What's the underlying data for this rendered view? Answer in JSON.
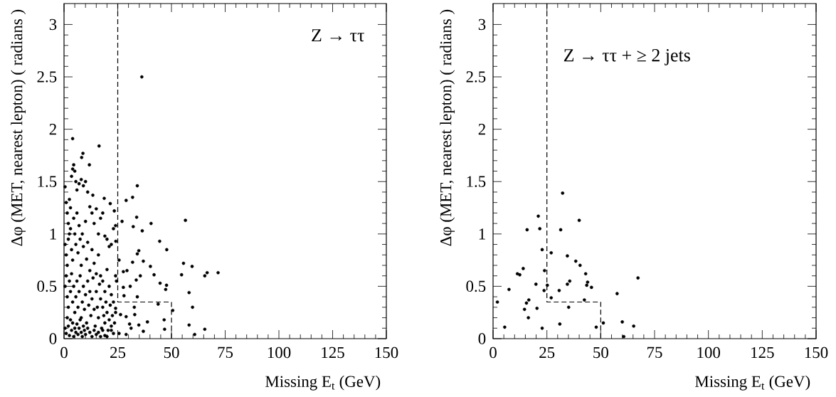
{
  "chart_data": [
    {
      "type": "scatter",
      "xlabel": "Missing E$_{t}$ (GeV)",
      "ylabel": "Δφ (MET, nearest lepton) ( radians )",
      "annotations": [
        "Z → ττ"
      ],
      "xlim": [
        0,
        150
      ],
      "ylim": [
        0,
        3.2
      ],
      "xticks": [
        0,
        25,
        50,
        75,
        100,
        125,
        150
      ],
      "yticks": [
        0,
        0.5,
        1,
        1.5,
        2,
        2.5,
        3
      ],
      "grid": false,
      "series": [
        {
          "color": "#000000",
          "marker": "circle",
          "x": [
            36.2,
            4.0,
            16.3,
            8.8,
            8.2,
            11.8,
            34.1,
            28.9,
            31.9,
            18.7,
            13.4,
            21.5,
            23.4,
            27.0,
            33.8,
            40.5,
            56.5,
            32.2,
            36.4,
            44.5,
            47.8,
            34.8,
            34.1,
            25.6,
            31.9,
            36.9,
            40.2,
            55.6,
            59.6,
            71.7,
            66.6,
            65.5,
            54.7,
            41.9,
            35.5,
            29.3,
            27.6,
            33.6,
            44.7,
            47.7,
            47.3,
            30.8,
            27.6,
            58.2,
            27.9,
            34.1,
            43.8,
            50.6,
            59.8,
            32.7,
            32.9,
            26.3,
            28.9,
            46.6,
            38.8,
            58.2,
            34.8,
            30.5,
            31.2,
            46.8,
            65.5,
            36.9,
            60.8,
            28.9,
            25.6,
            22.0,
            24.0,
            24.4,
            24.1,
            0.5,
            1,
            1.5,
            2,
            2.5,
            3,
            3.5,
            4,
            4.5,
            5,
            5.5,
            6,
            7,
            8,
            9,
            10,
            11,
            12,
            13,
            14,
            15,
            16,
            17,
            18,
            19,
            20,
            21,
            22,
            23,
            24,
            0.5,
            1,
            1.5,
            2,
            2.5,
            3,
            3.5,
            4,
            4.5,
            5,
            5.5,
            6,
            6.5,
            7,
            7.5,
            8,
            8.5,
            9,
            10,
            10.5,
            11,
            12,
            13,
            14,
            15,
            16,
            17,
            18,
            19,
            20,
            21,
            22,
            23,
            24,
            0.5,
            1,
            1.5,
            2,
            2.5,
            3,
            3.5,
            4,
            4.5,
            5,
            5.5,
            6,
            6.5,
            7,
            7.5,
            8,
            8.5,
            9,
            9.5,
            10,
            10.5,
            11,
            11.5,
            12,
            12.5,
            13,
            13.5,
            14,
            14.5,
            15,
            15.5,
            16,
            16.5,
            17,
            17.5,
            18,
            18.5,
            19,
            19.5,
            20,
            20.5,
            21,
            21.5,
            22,
            22.5,
            23,
            23.5,
            24,
            0.5,
            1,
            1.5,
            2,
            2.5,
            3,
            3.5,
            4,
            4.5,
            5,
            5.5,
            6,
            6.5,
            7,
            7.5,
            8,
            8.5,
            9,
            9.5,
            10,
            11,
            12,
            13,
            14,
            15,
            16,
            17,
            18,
            19,
            20
          ],
          "values": [
            2.5,
            1.91,
            1.84,
            1.77,
            1.73,
            1.66,
            1.46,
            1.32,
            1.35,
            1.34,
            1.37,
            1.29,
            1.22,
            1.12,
            1.16,
            1.1,
            1.13,
            1.07,
            1.03,
            0.93,
            0.85,
            0.84,
            0.81,
            0.75,
            0.73,
            0.74,
            0.69,
            0.72,
            0.69,
            0.63,
            0.63,
            0.6,
            0.61,
            0.61,
            0.6,
            0.65,
            0.64,
            0.56,
            0.53,
            0.51,
            0.47,
            0.5,
            0.49,
            0.44,
            0.41,
            0.4,
            0.33,
            0.27,
            0.3,
            0.3,
            0.23,
            0.23,
            0.21,
            0.18,
            0.16,
            0.13,
            0.13,
            0.14,
            0.1,
            0.09,
            0.09,
            0.07,
            0.04,
            0.04,
            0.05,
            0.08,
            0.29,
            0.55,
            0.93,
            1.45,
            1.3,
            1.2,
            1.1,
            1.33,
            1.25,
            1.55,
            1.62,
            1.66,
            1.6,
            1.5,
            1.42,
            1.48,
            1.52,
            1.46,
            1.5,
            1.4,
            1.26,
            1.2,
            1.1,
            1.24,
            1.0,
            1.15,
            1.2,
            0.98,
            0.95,
            0.88,
            0.9,
            1.05,
            1.08,
            0.9,
            0.8,
            0.7,
            0.95,
            1.0,
            1.05,
            0.85,
            0.75,
            1.15,
            1.0,
            0.9,
            1.2,
            0.82,
            1.08,
            0.95,
            0.7,
            1.0,
            0.88,
            1.12,
            0.76,
            0.92,
            0.65,
            0.85,
            0.72,
            0.62,
            0.8,
            0.6,
            0.55,
            0.45,
            0.66,
            0.5,
            0.42,
            0.35,
            0.6,
            0.5,
            0.6,
            0.4,
            0.3,
            0.55,
            0.45,
            0.62,
            0.35,
            0.5,
            0.25,
            0.4,
            0.55,
            0.3,
            0.45,
            0.6,
            0.2,
            0.35,
            0.5,
            0.28,
            0.42,
            0.15,
            0.55,
            0.32,
            0.45,
            0.22,
            0.38,
            0.58,
            0.28,
            0.12,
            0.45,
            0.3,
            0.2,
            0.52,
            0.38,
            0.1,
            0.3,
            0.22,
            0.15,
            0.35,
            0.25,
            0.08,
            0.18,
            0.32,
            0.12,
            0.22,
            0.05,
            0.15,
            0.25,
            0.1,
            0.05,
            0.2,
            0.12,
            0.03,
            0.18,
            0.08,
            0.15,
            0.02,
            0.1,
            0.06,
            0.14,
            0.04,
            0.1,
            0.18,
            0.06,
            0.02,
            0.12,
            0.08,
            0.04,
            0.1,
            0.06,
            0.02,
            0.08,
            0.04,
            0.06,
            0.02,
            0.08,
            0.03,
            0.02
          ]
        },
        {
          "type": "line",
          "color": "#000000",
          "line_style": "dashed",
          "x": [
            25,
            25,
            50,
            50
          ],
          "values": [
            3.2,
            0.35,
            0.35,
            0
          ]
        }
      ]
    },
    {
      "type": "scatter",
      "xlabel": "Missing E$_{t}$ (GeV)",
      "ylabel": "Δφ (MET, nearest lepton) ( radians )",
      "annotations": [
        "Z → ττ + ≥ 2 jets"
      ],
      "xlim": [
        0,
        150
      ],
      "ylim": [
        0,
        3.2
      ],
      "xticks": [
        0,
        25,
        50,
        75,
        100,
        125,
        150
      ],
      "yticks": [
        0,
        0.5,
        1,
        1.5,
        2,
        2.5,
        3
      ],
      "grid": false,
      "series": [
        {
          "color": "#000000",
          "marker": "circle",
          "x": [
            2.0,
            5.4,
            7.4,
            11.3,
            12.4,
            14.0,
            14.6,
            15.5,
            15.8,
            16.4,
            16.6,
            19.9,
            20.4,
            21.0,
            21.7,
            22.8,
            22.8,
            23.7,
            23.9,
            25.2,
            27.0,
            27.0,
            30.7,
            31.0,
            31.4,
            32.3,
            34.5,
            34.5,
            35.1,
            35.6,
            38.4,
            40.0,
            40.4,
            42.4,
            43.0,
            43.5,
            43.9,
            45.7,
            47.9,
            51.2,
            57.6,
            60.0,
            60.7,
            65.3,
            67.3
          ],
          "values": [
            0.35,
            0.11,
            0.47,
            0.62,
            0.61,
            0.67,
            0.28,
            0.34,
            1.04,
            0.2,
            0.37,
            0.52,
            0.29,
            1.17,
            1.05,
            0.85,
            0.1,
            0.46,
            0.65,
            0.51,
            0.82,
            0.39,
            0.46,
            0.14,
            1.04,
            1.39,
            0.79,
            0.52,
            0.3,
            0.55,
            0.74,
            1.13,
            0.7,
            0.37,
            0.62,
            0.51,
            0.54,
            0.49,
            0.11,
            0.15,
            0.43,
            0.16,
            0.02,
            0.12,
            0.58
          ]
        },
        {
          "type": "line",
          "color": "#000000",
          "line_style": "dashed",
          "x": [
            25,
            25,
            50,
            50
          ],
          "values": [
            3.2,
            0.35,
            0.35,
            0
          ]
        }
      ]
    }
  ]
}
